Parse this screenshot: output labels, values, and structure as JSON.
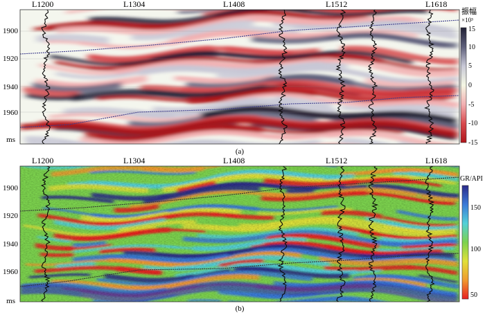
{
  "panels": [
    {
      "id": "a",
      "caption": "(a)",
      "top_labels": [
        "L1200",
        "L1304",
        "L1408",
        "L1512",
        "L1618"
      ],
      "y_ticks": [
        "1900",
        "1920",
        "1940",
        "1960"
      ],
      "y_unit": "ms",
      "horizon_labels": [
        "",
        ""
      ],
      "colorbar": {
        "title": "振幅",
        "title_suffix": "×10³",
        "ticks": [
          "15",
          "10",
          "5",
          "0",
          "-5",
          "-10",
          "-15"
        ],
        "stops": [
          "#202035",
          "#5e5f7b",
          "#c8c8d6",
          "#f4f7e4",
          "#f2b0b2",
          "#d84a4e",
          "#b0141a"
        ]
      }
    },
    {
      "id": "b",
      "caption": "(b)",
      "top_labels": [
        "L1200",
        "L1304",
        "L1408",
        "L1512",
        "L1618"
      ],
      "y_ticks": [
        "1900",
        "1920",
        "1940",
        "1960"
      ],
      "y_unit": "ms",
      "horizon_labels": [
        "",
        ""
      ],
      "colorbar": {
        "title": "GR/API",
        "ticks": [
          "150",
          "100",
          "50"
        ],
        "stops": [
          "#2a2a8a",
          "#3a7ad8",
          "#52d0d8",
          "#7cd24e",
          "#e0e03a",
          "#f09a30",
          "#e82020"
        ]
      }
    }
  ]
}
